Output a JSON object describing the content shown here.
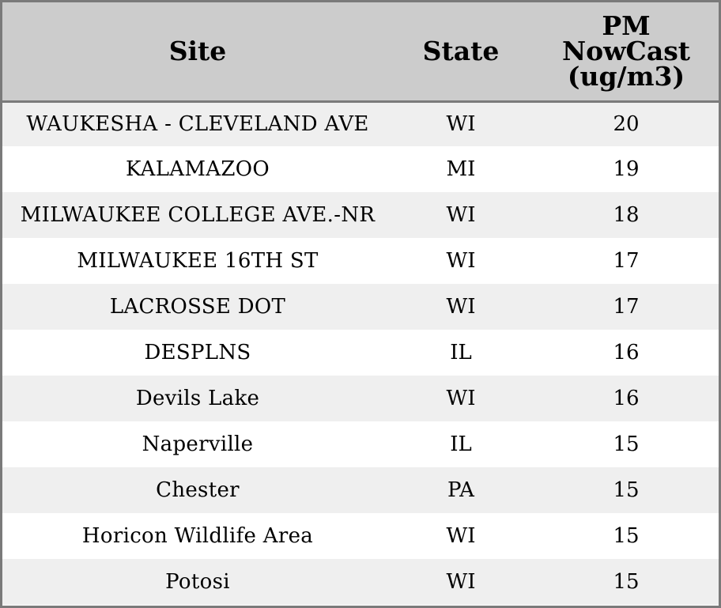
{
  "chart_data": {
    "type": "table",
    "columns": [
      "Site",
      "State",
      "PM NowCast (ug/m3)"
    ],
    "header_lines": {
      "site": "Site",
      "state": "State",
      "value": [
        "PM",
        "NowCast",
        "(ug/m3)"
      ]
    },
    "rows": [
      {
        "site": "WAUKESHA - CLEVELAND AVE",
        "state": "WI",
        "value": "20"
      },
      {
        "site": "KALAMAZOO",
        "state": "MI",
        "value": "19"
      },
      {
        "site": "MILWAUKEE COLLEGE AVE.-NR",
        "state": "WI",
        "value": "18"
      },
      {
        "site": "MILWAUKEE 16TH ST",
        "state": "WI",
        "value": "17"
      },
      {
        "site": "LACROSSE DOT",
        "state": "WI",
        "value": "17"
      },
      {
        "site": "DESPLNS",
        "state": "IL",
        "value": "16"
      },
      {
        "site": "Devils Lake",
        "state": "WI",
        "value": "16"
      },
      {
        "site": "Naperville",
        "state": "IL",
        "value": "15"
      },
      {
        "site": "Chester",
        "state": "PA",
        "value": "15"
      },
      {
        "site": "Horicon Wildlife Area",
        "state": "WI",
        "value": "15"
      },
      {
        "site": "Potosi",
        "state": "WI",
        "value": "15"
      }
    ],
    "colors": {
      "header_bg": "#cccccc",
      "row_alt_bg": "#efefef",
      "row_bg": "#ffffff",
      "border": "#7a7a7a"
    }
  }
}
